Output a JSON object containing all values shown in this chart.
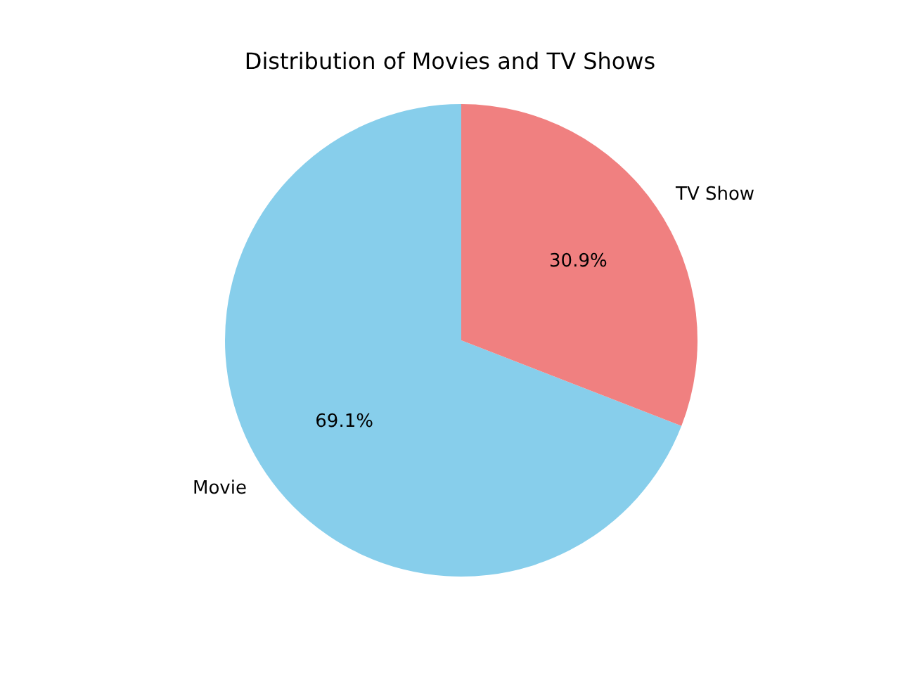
{
  "chart_data": {
    "type": "pie",
    "title": "Distribution of Movies and TV Shows",
    "categories": [
      "Movie",
      "TV Show"
    ],
    "values": [
      69.1,
      30.9
    ],
    "colors": [
      "#87ceeb",
      "#f08080"
    ],
    "value_labels": [
      "69.1%",
      "30.9%"
    ]
  }
}
